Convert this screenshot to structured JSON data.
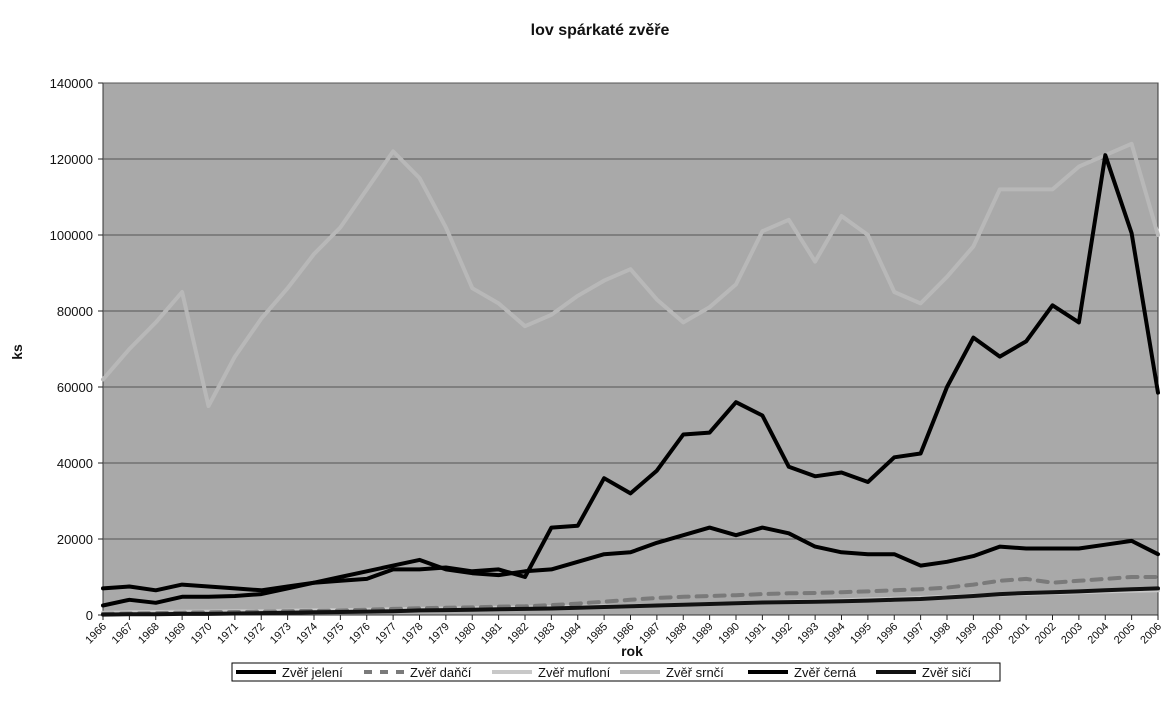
{
  "chart_data": {
    "type": "line",
    "title": "lov spárkaté zvěře",
    "xlabel": "rok",
    "ylabel": "ks",
    "ylim": [
      0,
      140000
    ],
    "y_ticks": [
      "0",
      "20000",
      "40000",
      "60000",
      "80000",
      "100000",
      "120000",
      "140000"
    ],
    "grid": true,
    "legend_position": "bottom",
    "categories": [
      "1966",
      "1967",
      "1968",
      "1969",
      "1970",
      "1971",
      "1972",
      "1973",
      "1974",
      "1975",
      "1976",
      "1977",
      "1978",
      "1979",
      "1980",
      "1981",
      "1982",
      "1983",
      "1984",
      "1985",
      "1986",
      "1987",
      "1988",
      "1989",
      "1990",
      "1991",
      "1992",
      "1993",
      "1994",
      "1995",
      "1996",
      "1997",
      "1998",
      "1999",
      "2000",
      "2001",
      "2002",
      "2003",
      "2004",
      "2005",
      "2006"
    ],
    "series": [
      {
        "name": "Zvěř jelení",
        "color": "#000000",
        "style": "solid",
        "values": [
          2500,
          4000,
          3200,
          4800,
          4800,
          5000,
          5500,
          7000,
          8500,
          10000,
          11500,
          13000,
          14500,
          12000,
          11000,
          10500,
          11500,
          12000,
          14000,
          16000,
          16500,
          19000,
          21000,
          23000,
          21000,
          23000,
          21500,
          18000,
          16500,
          16000,
          16000,
          13000,
          14000,
          15500,
          18000,
          17500,
          17500,
          17500,
          18500,
          19500,
          16000
        ]
      },
      {
        "name": "Zvěř daňčí",
        "color": "#7a7a7a",
        "style": "dashed",
        "values": [
          300,
          400,
          500,
          600,
          700,
          800,
          900,
          1000,
          1100,
          1200,
          1400,
          1600,
          1800,
          1900,
          2000,
          2200,
          2300,
          2600,
          3000,
          3500,
          4000,
          4500,
          4800,
          5000,
          5200,
          5500,
          5700,
          5800,
          6000,
          6200,
          6500,
          6800,
          7200,
          8000,
          9000,
          9500,
          8500,
          9000,
          9500,
          10000,
          10000
        ]
      },
      {
        "name": "Zvěř mufloní",
        "color": "#c8c8c8",
        "style": "solid",
        "values": [
          600,
          700,
          800,
          850,
          900,
          950,
          1000,
          1100,
          1200,
          1300,
          1400,
          1500,
          1600,
          1700,
          1800,
          1900,
          2000,
          2100,
          2200,
          2300,
          2400,
          2500,
          2700,
          2900,
          3100,
          3300,
          3500,
          3700,
          3900,
          4100,
          4300,
          4500,
          4800,
          5100,
          5400,
          5600,
          5800,
          6000,
          6200,
          6400,
          6500
        ]
      },
      {
        "name": "Zvěř srnčí",
        "color": "#b8b8b8",
        "style": "solid",
        "values": [
          62000,
          70000,
          77000,
          85000,
          55000,
          68000,
          78000,
          86000,
          95000,
          102000,
          112000,
          122000,
          115000,
          102000,
          86000,
          82000,
          76000,
          79000,
          84000,
          88000,
          91000,
          83000,
          77000,
          81000,
          87000,
          101000,
          104000,
          93000,
          105000,
          100000,
          85000,
          82000,
          89000,
          97000,
          112000,
          112000,
          112000,
          118000,
          121000,
          124000,
          100000
        ]
      },
      {
        "name": "Zvěř černá",
        "color": "#000000",
        "style": "solid",
        "values": [
          7000,
          7500,
          6500,
          8000,
          7500,
          7000,
          6500,
          7500,
          8500,
          9000,
          9500,
          12000,
          12000,
          12500,
          11500,
          12000,
          10000,
          23000,
          23500,
          36000,
          32000,
          38000,
          47500,
          48000,
          56000,
          52500,
          39000,
          36500,
          37500,
          35000,
          41500,
          42500,
          60000,
          73000,
          68000,
          72000,
          81500,
          77000,
          121000,
          100500,
          58500
        ]
      },
      {
        "name": "Zvěř sičí",
        "color": "#111111",
        "style": "solid",
        "values": [
          100,
          200,
          200,
          300,
          300,
          400,
          500,
          600,
          700,
          800,
          900,
          1000,
          1200,
          1300,
          1400,
          1500,
          1600,
          1700,
          1900,
          2100,
          2300,
          2500,
          2700,
          2900,
          3100,
          3300,
          3400,
          3500,
          3600,
          3800,
          4000,
          4200,
          4600,
          5000,
          5500,
          5800,
          6000,
          6200,
          6500,
          6800,
          7000
        ]
      }
    ]
  }
}
